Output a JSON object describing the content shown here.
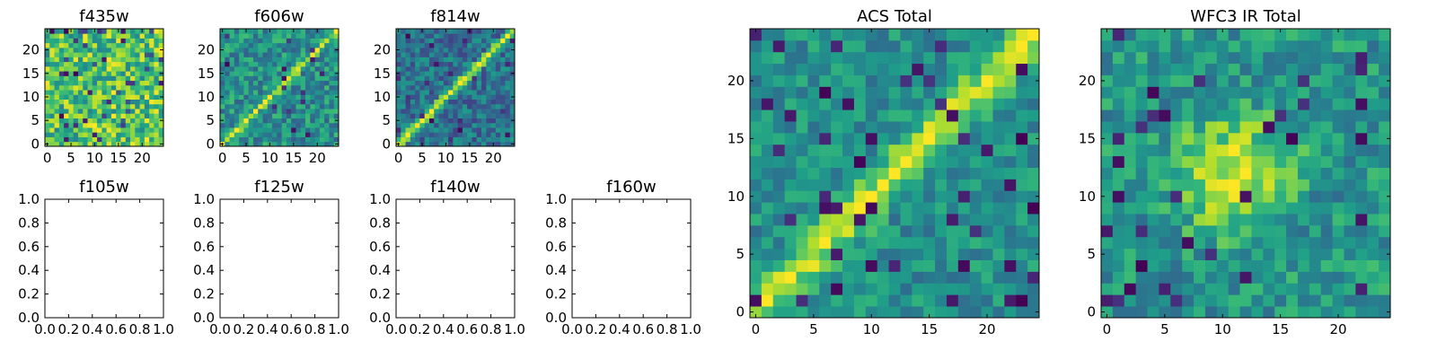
{
  "figure": {
    "colormap": "viridis",
    "colors": {
      "viridis_stops": [
        "#440154",
        "#482878",
        "#3e4989",
        "#31688e",
        "#26828e",
        "#1f9e89",
        "#35b779",
        "#6ece58",
        "#b5de2b",
        "#fde725"
      ],
      "axes": "#000000",
      "background": "#ffffff"
    }
  },
  "chart_data": [
    {
      "id": "f435w",
      "type": "heatmap",
      "title": "f435w",
      "size": 25,
      "pattern": "noise",
      "xlabel": "",
      "ylabel": "",
      "xlim": [
        -0.5,
        24.5
      ],
      "ylim": [
        -0.5,
        24.5
      ],
      "xticks": [
        "0",
        "5",
        "10",
        "15",
        "20"
      ],
      "yticks": [
        "0",
        "5",
        "10",
        "15",
        "20"
      ],
      "note_values": "pixel values approximated; 25x25 grid, weak structure, mostly yellow-green noise"
    },
    {
      "id": "f606w",
      "type": "heatmap",
      "title": "f606w",
      "size": 25,
      "pattern": "diagonal",
      "xlabel": "",
      "ylabel": "",
      "xlim": [
        -0.5,
        24.5
      ],
      "ylim": [
        -0.5,
        24.5
      ],
      "xticks": [
        "0",
        "5",
        "10",
        "15",
        "20"
      ],
      "yticks": [
        "0",
        "5",
        "10",
        "15",
        "20"
      ]
    },
    {
      "id": "f814w",
      "type": "heatmap",
      "title": "f814w",
      "size": 25,
      "pattern": "diagonal-strong",
      "xlabel": "",
      "ylabel": "",
      "xlim": [
        -0.5,
        24.5
      ],
      "ylim": [
        -0.5,
        24.5
      ],
      "xticks": [
        "0",
        "5",
        "10",
        "15",
        "20"
      ],
      "yticks": [
        "0",
        "5",
        "10",
        "15",
        "20"
      ]
    },
    {
      "id": "f105w",
      "type": "empty",
      "title": "f105w",
      "xlim": [
        0.0,
        1.0
      ],
      "ylim": [
        0.0,
        1.0
      ],
      "xticks": [
        "0.0",
        "0.2",
        "0.4",
        "0.6",
        "0.8",
        "1.0"
      ],
      "yticks": [
        "0.0",
        "0.2",
        "0.4",
        "0.6",
        "0.8",
        "1.0"
      ]
    },
    {
      "id": "f125w",
      "type": "empty",
      "title": "f125w",
      "xlim": [
        0.0,
        1.0
      ],
      "ylim": [
        0.0,
        1.0
      ],
      "xticks": [
        "0.0",
        "0.2",
        "0.4",
        "0.6",
        "0.8",
        "1.0"
      ],
      "yticks": [
        "0.0",
        "0.2",
        "0.4",
        "0.6",
        "0.8",
        "1.0"
      ]
    },
    {
      "id": "f140w",
      "type": "empty",
      "title": "f140w",
      "xlim": [
        0.0,
        1.0
      ],
      "ylim": [
        0.0,
        1.0
      ],
      "xticks": [
        "0.0",
        "0.2",
        "0.4",
        "0.6",
        "0.8",
        "1.0"
      ],
      "yticks": [
        "0.0",
        "0.2",
        "0.4",
        "0.6",
        "0.8",
        "1.0"
      ]
    },
    {
      "id": "f160w",
      "type": "empty",
      "title": "f160w",
      "xlim": [
        0.0,
        1.0
      ],
      "ylim": [
        0.0,
        1.0
      ],
      "xticks": [
        "0.0",
        "0.2",
        "0.4",
        "0.6",
        "0.8",
        "1.0"
      ],
      "yticks": [
        "0.0",
        "0.2",
        "0.4",
        "0.6",
        "0.8",
        "1.0"
      ]
    },
    {
      "id": "acs-total",
      "type": "heatmap",
      "title": "ACS Total",
      "size": 25,
      "pattern": "diagonal-broad",
      "xlabel": "",
      "ylabel": "",
      "xlim": [
        -0.5,
        24.5
      ],
      "ylim": [
        -0.5,
        24.5
      ],
      "xticks": [
        "0",
        "5",
        "10",
        "15",
        "20"
      ],
      "yticks": [
        "0",
        "5",
        "10",
        "15",
        "20"
      ]
    },
    {
      "id": "wfc3-ir-total",
      "type": "heatmap",
      "title": "WFC3 IR Total",
      "size": 25,
      "pattern": "blob",
      "xlabel": "",
      "ylabel": "",
      "xlim": [
        -0.5,
        24.5
      ],
      "ylim": [
        -0.5,
        24.5
      ],
      "xticks": [
        "0",
        "5",
        "10",
        "15",
        "20"
      ],
      "yticks": [
        "0",
        "5",
        "10",
        "15",
        "20"
      ]
    }
  ]
}
